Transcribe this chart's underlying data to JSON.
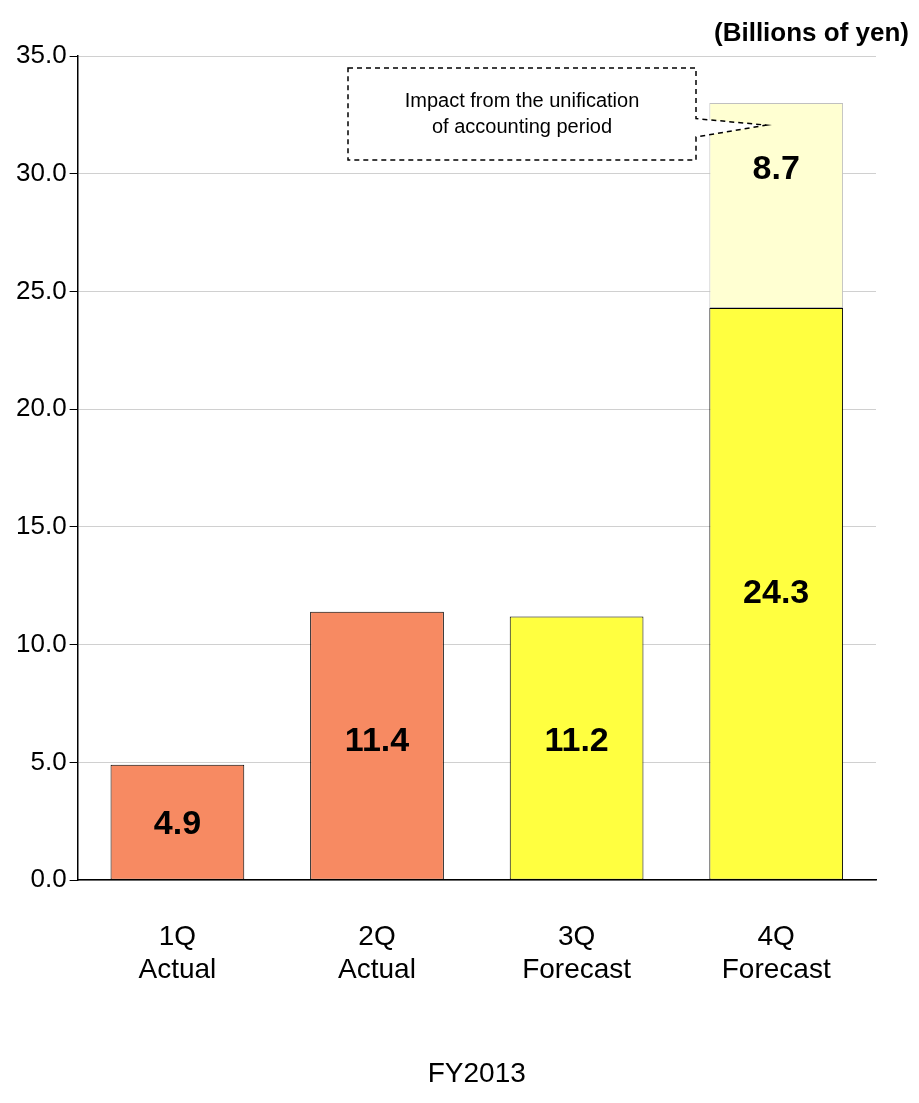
{
  "chart_data": {
    "type": "bar",
    "stacked": true,
    "ylabel": "(Billions of yen)",
    "xlabel": "FY2013",
    "categories": [
      "1Q\nActual",
      "2Q\nActual",
      "3Q\nForecast",
      "4Q\nForecast"
    ],
    "series": [
      {
        "values": [
          4.9,
          11.4,
          11.2,
          24.3
        ],
        "colors": [
          "#f78a62",
          "#f78a62",
          "#ffff40",
          "#ffff40"
        ]
      },
      {
        "values": [
          null,
          null,
          null,
          8.7
        ],
        "color": "#ffffd2"
      }
    ],
    "ylim": [
      0,
      35
    ],
    "yticks": [
      {
        "value": 0,
        "label": "0.0"
      },
      {
        "value": 5,
        "label": "5.0"
      },
      {
        "value": 10,
        "label": "10.0"
      },
      {
        "value": 15,
        "label": "15.0"
      },
      {
        "value": 20,
        "label": "20.0"
      },
      {
        "value": 25,
        "label": "25.0"
      },
      {
        "value": 30,
        "label": "30.0"
      },
      {
        "value": 35,
        "label": "35.0"
      }
    ],
    "grid": "y",
    "data_labels": true,
    "legend": false,
    "annotations": [
      "Impact from the unification\nof accounting period"
    ]
  }
}
